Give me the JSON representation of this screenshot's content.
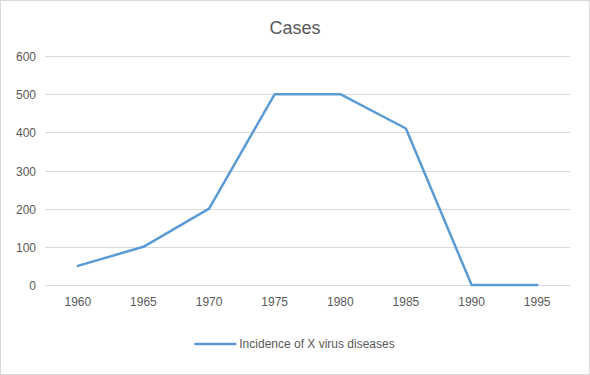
{
  "chart_data": {
    "type": "line",
    "title": "Cases",
    "categories": [
      "1960",
      "1965",
      "1970",
      "1975",
      "1980",
      "1985",
      "1990",
      "1995"
    ],
    "series": [
      {
        "name": "Incidence of X virus diseases",
        "color": "#5b9bd5",
        "values": [
          50,
          100,
          200,
          500,
          500,
          410,
          0,
          0
        ]
      }
    ],
    "ylim": [
      0,
      600
    ],
    "yticks": [
      0,
      100,
      200,
      300,
      400,
      500,
      600
    ],
    "grid": true,
    "legend": "bottom"
  }
}
